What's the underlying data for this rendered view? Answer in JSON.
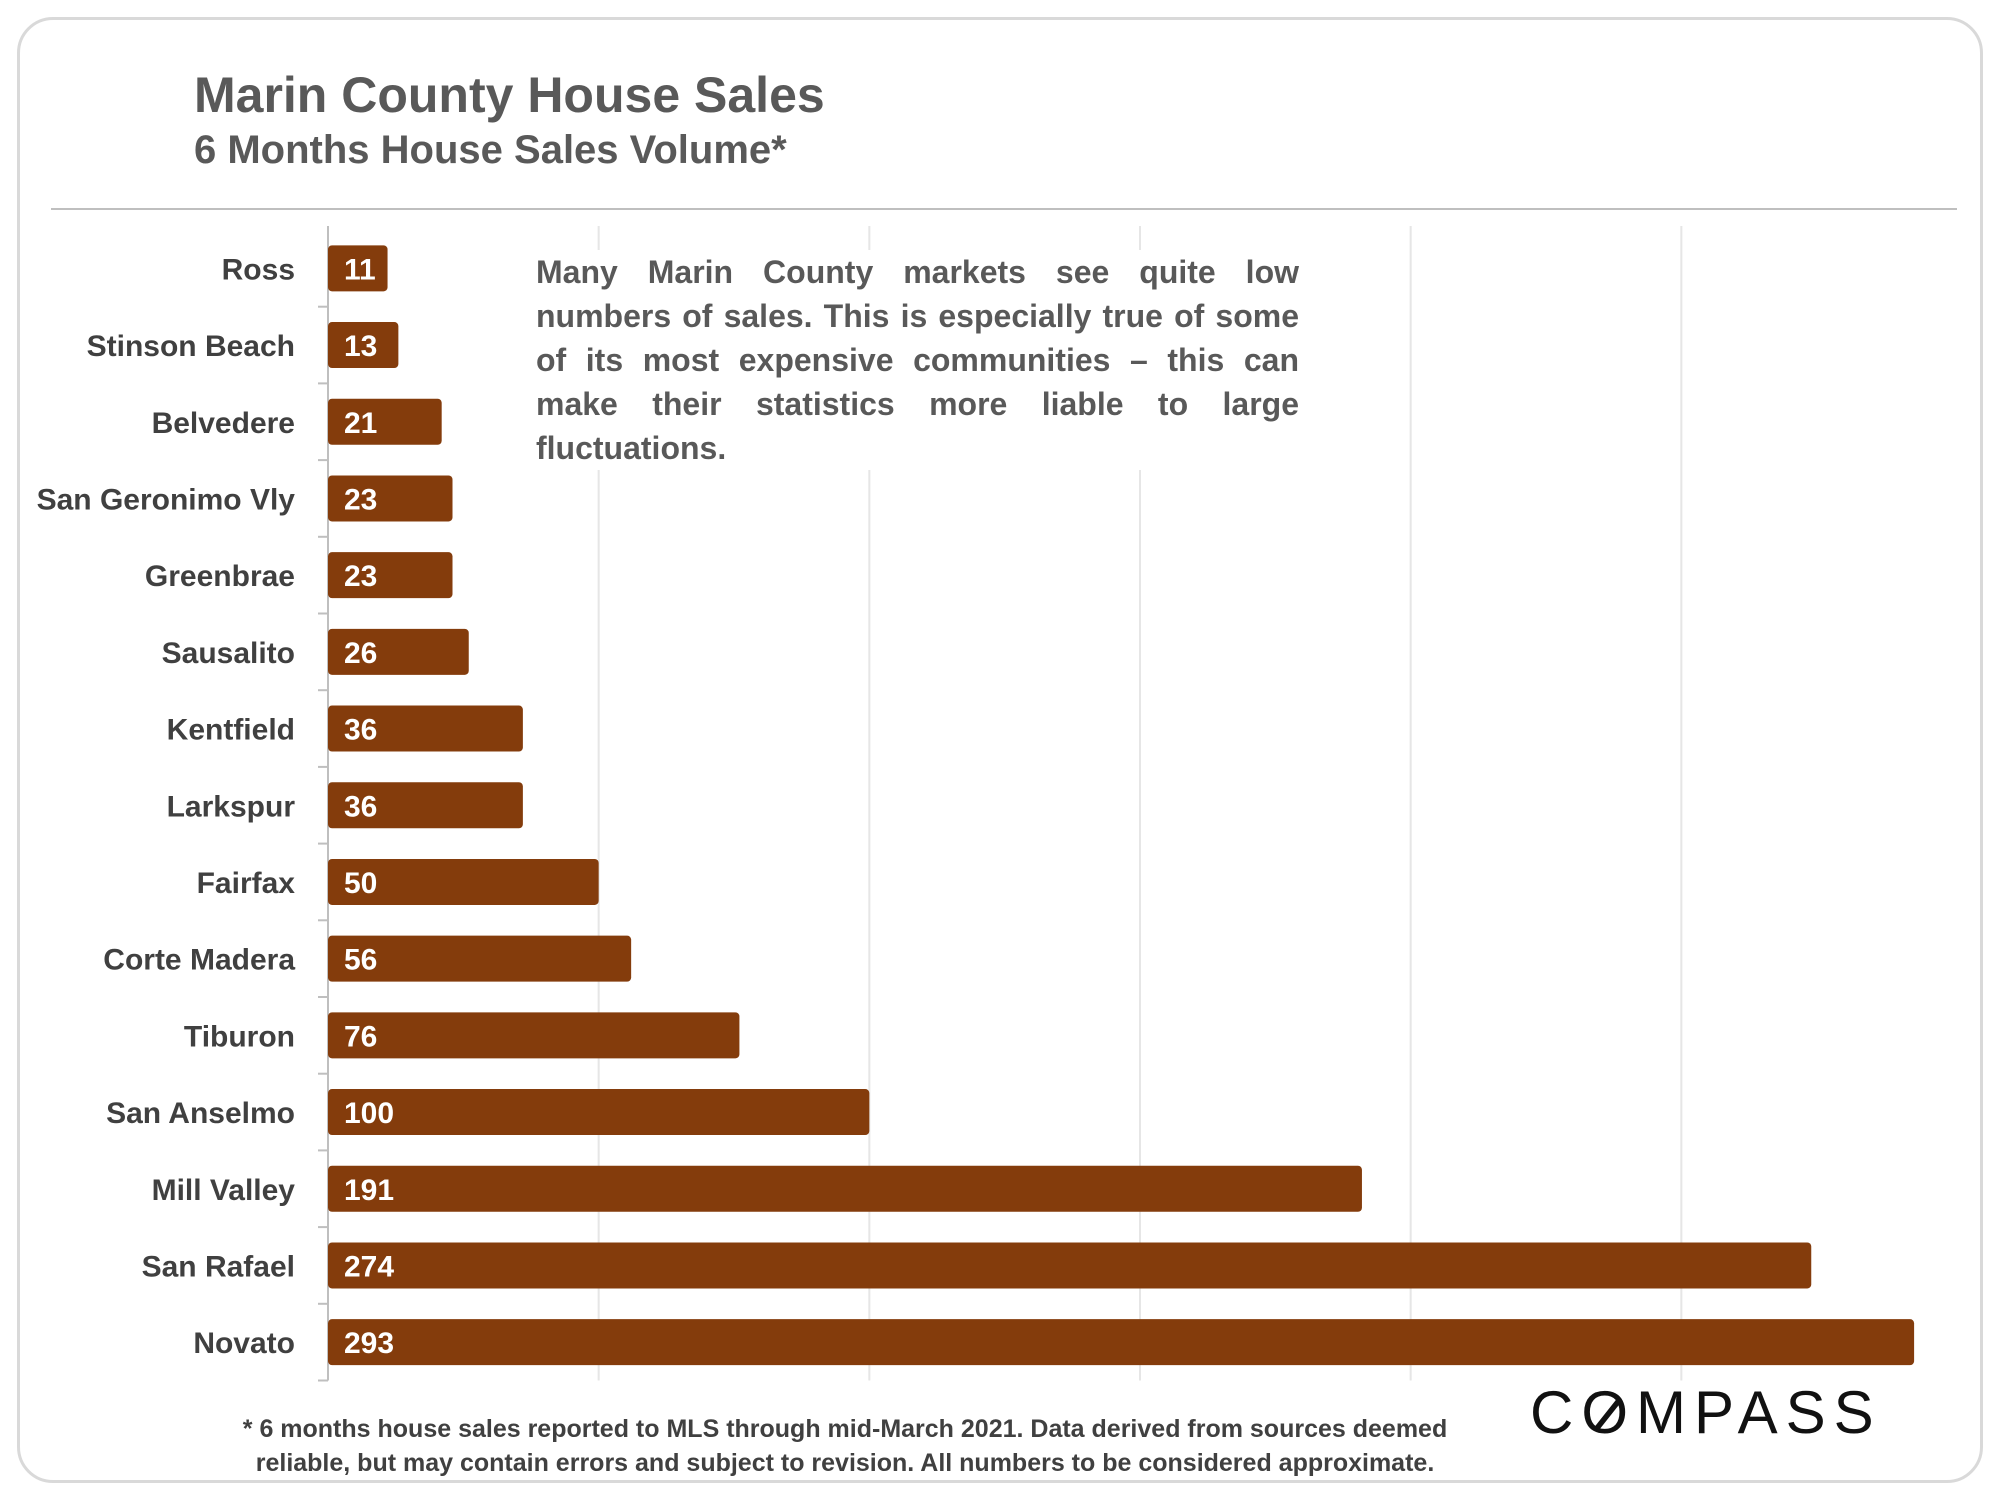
{
  "header": {
    "title": "Marin County House Sales",
    "subtitle": "6 Months House Sales Volume*"
  },
  "annotation": "Many Marin County markets see quite low numbers of sales. This is especially true of some of its most expensive communities – this can make their statistics more liable to large fluctuations.",
  "footnote": {
    "line1": "* 6 months house sales reported to MLS through mid-March 2021. Data derived from sources deemed",
    "line2": "reliable, but may contain errors and subject to revision. All numbers to be considered approximate."
  },
  "logo": {
    "text": "COMPASS",
    "before_o": "C",
    "o": "O",
    "after_o": "MPASS"
  },
  "colors": {
    "bar": "#843C0C",
    "bar_label": "#ffffff",
    "gridline": "#e6e6e6",
    "text": "#404040"
  },
  "chart_data": {
    "type": "bar",
    "orientation": "horizontal",
    "title": "Marin County House Sales",
    "subtitle": "6 Months House Sales Volume*",
    "categories": [
      "Ross",
      "Stinson Beach",
      "Belvedere",
      "San Geronimo Vly",
      "Greenbrae",
      "Sausalito",
      "Kentfield",
      "Larkspur",
      "Fairfax",
      "Corte Madera",
      "Tiburon",
      "San Anselmo",
      "Mill Valley",
      "San Rafael",
      "Novato"
    ],
    "values": [
      11,
      13,
      21,
      23,
      23,
      26,
      36,
      36,
      50,
      56,
      76,
      100,
      191,
      274,
      293
    ],
    "xlim": [
      0,
      300
    ],
    "grid": true,
    "legend": "none",
    "data_labels": "inside-base",
    "xlabel": "",
    "ylabel": ""
  }
}
